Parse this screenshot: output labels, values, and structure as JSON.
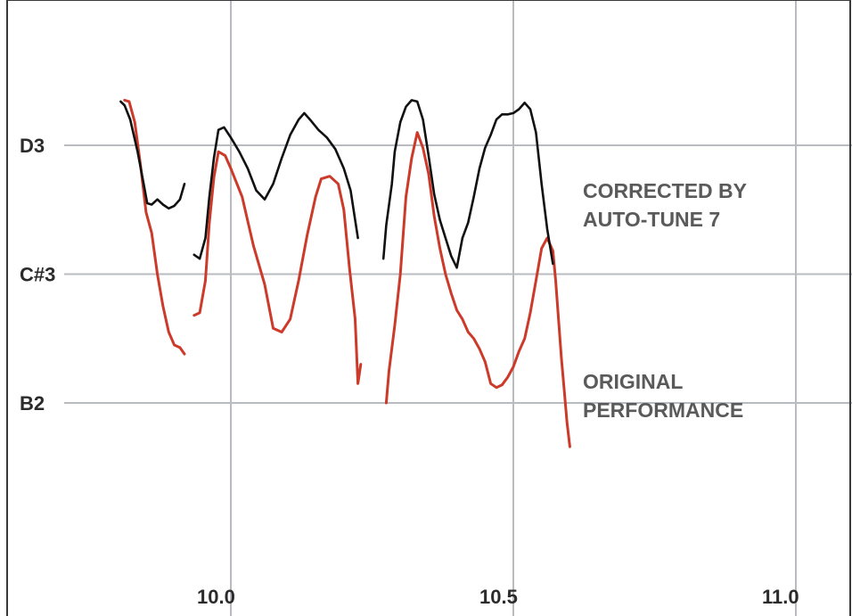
{
  "chart_data": {
    "type": "line",
    "title": "",
    "xlabel": "",
    "ylabel": "",
    "x_ticks": [
      10.0,
      10.5,
      11.0
    ],
    "x_tick_labels": [
      "10.0",
      "10.5",
      "11.0"
    ],
    "y_ticks": [
      2,
      1,
      0
    ],
    "y_tick_labels": [
      "B2",
      "C#3",
      "D3"
    ],
    "xlim": [
      9.6,
      11.05
    ],
    "ylim": [
      -0.25,
      2.2
    ],
    "grid": true,
    "colors": {
      "grid": "#b8bcc0",
      "axis": "#3a3a3a",
      "corrected": "#111111",
      "original": "#cc3a2a",
      "original_label": "#5a5a5a",
      "corrected_label": "#5a5a5a"
    },
    "series_labels": {
      "corrected": [
        "CORRECTED BY",
        "AUTO-TUNE 7"
      ],
      "original": [
        "ORIGINAL",
        "PERFORMANCE"
      ]
    },
    "series": [
      {
        "key": "corrected",
        "segments": [
          [
            [
              9.805,
              -0.34
            ],
            [
              9.812,
              -0.31
            ],
            [
              9.822,
              -0.2
            ],
            [
              9.835,
              0.05
            ],
            [
              9.845,
              0.28
            ],
            [
              9.852,
              0.45
            ],
            [
              9.86,
              0.46
            ],
            [
              9.87,
              0.42
            ],
            [
              9.88,
              0.46
            ],
            [
              9.89,
              0.49
            ],
            [
              9.9,
              0.47
            ],
            [
              9.91,
              0.42
            ],
            [
              9.918,
              0.3
            ]
          ],
          [
            [
              9.935,
              0.85
            ],
            [
              9.945,
              0.88
            ],
            [
              9.955,
              0.72
            ],
            [
              9.962,
              0.4
            ],
            [
              9.97,
              0.1
            ],
            [
              9.978,
              -0.12
            ],
            [
              9.988,
              -0.14
            ],
            [
              10.0,
              -0.06
            ],
            [
              10.015,
              0.05
            ],
            [
              10.03,
              0.18
            ],
            [
              10.045,
              0.35
            ],
            [
              10.06,
              0.42
            ],
            [
              10.075,
              0.3
            ],
            [
              10.09,
              0.1
            ],
            [
              10.105,
              -0.08
            ],
            [
              10.12,
              -0.2
            ],
            [
              10.13,
              -0.25
            ],
            [
              10.14,
              -0.2
            ],
            [
              10.155,
              -0.12
            ],
            [
              10.17,
              -0.06
            ],
            [
              10.185,
              0.03
            ],
            [
              10.2,
              0.18
            ],
            [
              10.212,
              0.35
            ],
            [
              10.22,
              0.58
            ],
            [
              10.225,
              0.72
            ]
          ],
          [
            [
              10.27,
              0.88
            ],
            [
              10.275,
              0.62
            ],
            [
              10.285,
              0.3
            ],
            [
              10.29,
              0.05
            ],
            [
              10.3,
              -0.18
            ],
            [
              10.31,
              -0.3
            ],
            [
              10.32,
              -0.35
            ],
            [
              10.33,
              -0.34
            ],
            [
              10.34,
              -0.2
            ],
            [
              10.35,
              0.08
            ],
            [
              10.36,
              0.38
            ],
            [
              10.37,
              0.58
            ],
            [
              10.38,
              0.72
            ],
            [
              10.39,
              0.86
            ],
            [
              10.4,
              0.95
            ],
            [
              10.41,
              0.72
            ],
            [
              10.42,
              0.6
            ],
            [
              10.43,
              0.4
            ],
            [
              10.44,
              0.18
            ],
            [
              10.45,
              0.02
            ],
            [
              10.46,
              -0.08
            ],
            [
              10.47,
              -0.2
            ],
            [
              10.48,
              -0.24
            ],
            [
              10.49,
              -0.24
            ],
            [
              10.5,
              -0.25
            ],
            [
              10.51,
              -0.28
            ],
            [
              10.52,
              -0.33
            ],
            [
              10.53,
              -0.28
            ],
            [
              10.54,
              -0.1
            ],
            [
              10.55,
              0.3
            ],
            [
              10.56,
              0.65
            ],
            [
              10.57,
              0.92
            ]
          ]
        ]
      },
      {
        "key": "original",
        "segments": [
          [
            [
              9.812,
              -0.35
            ],
            [
              9.82,
              -0.34
            ],
            [
              9.83,
              -0.18
            ],
            [
              9.84,
              0.15
            ],
            [
              9.85,
              0.52
            ],
            [
              9.86,
              0.68
            ],
            [
              9.87,
              1.0
            ],
            [
              9.88,
              1.25
            ],
            [
              9.89,
              1.45
            ],
            [
              9.9,
              1.55
            ],
            [
              9.91,
              1.57
            ],
            [
              9.918,
              1.62
            ]
          ],
          [
            [
              9.935,
              1.32
            ],
            [
              9.945,
              1.3
            ],
            [
              9.955,
              1.05
            ],
            [
              9.962,
              0.6
            ],
            [
              9.97,
              0.25
            ],
            [
              9.978,
              0.05
            ],
            [
              9.99,
              0.08
            ],
            [
              10.0,
              0.18
            ],
            [
              10.02,
              0.4
            ],
            [
              10.04,
              0.78
            ],
            [
              10.06,
              1.08
            ],
            [
              10.075,
              1.42
            ],
            [
              10.09,
              1.45
            ],
            [
              10.105,
              1.35
            ],
            [
              10.12,
              1.05
            ],
            [
              10.135,
              0.7
            ],
            [
              10.15,
              0.4
            ],
            [
              10.16,
              0.26
            ],
            [
              10.175,
              0.24
            ],
            [
              10.19,
              0.3
            ],
            [
              10.2,
              0.5
            ],
            [
              10.21,
              0.95
            ],
            [
              10.22,
              1.35
            ],
            [
              10.225,
              1.85
            ],
            [
              10.23,
              1.7
            ]
          ],
          [
            [
              10.275,
              2.0
            ],
            [
              10.28,
              1.75
            ],
            [
              10.29,
              1.4
            ],
            [
              10.3,
              1.0
            ],
            [
              10.31,
              0.4
            ],
            [
              10.32,
              0.1
            ],
            [
              10.33,
              -0.1
            ],
            [
              10.34,
              0.02
            ],
            [
              10.35,
              0.22
            ],
            [
              10.36,
              0.55
            ],
            [
              10.37,
              0.8
            ],
            [
              10.38,
              1.0
            ],
            [
              10.39,
              1.15
            ],
            [
              10.4,
              1.28
            ],
            [
              10.41,
              1.35
            ],
            [
              10.42,
              1.45
            ],
            [
              10.43,
              1.5
            ],
            [
              10.44,
              1.58
            ],
            [
              10.45,
              1.68
            ],
            [
              10.46,
              1.85
            ],
            [
              10.47,
              1.88
            ],
            [
              10.48,
              1.86
            ],
            [
              10.49,
              1.8
            ],
            [
              10.5,
              1.72
            ],
            [
              10.51,
              1.6
            ],
            [
              10.52,
              1.5
            ],
            [
              10.53,
              1.3
            ],
            [
              10.54,
              1.05
            ],
            [
              10.55,
              0.8
            ],
            [
              10.56,
              0.72
            ],
            [
              10.57,
              0.82
            ],
            [
              10.575,
              1.05
            ],
            [
              10.58,
              1.35
            ],
            [
              10.585,
              1.65
            ],
            [
              10.59,
              1.9
            ],
            [
              10.595,
              2.15
            ],
            [
              10.6,
              2.34
            ]
          ]
        ]
      }
    ]
  }
}
